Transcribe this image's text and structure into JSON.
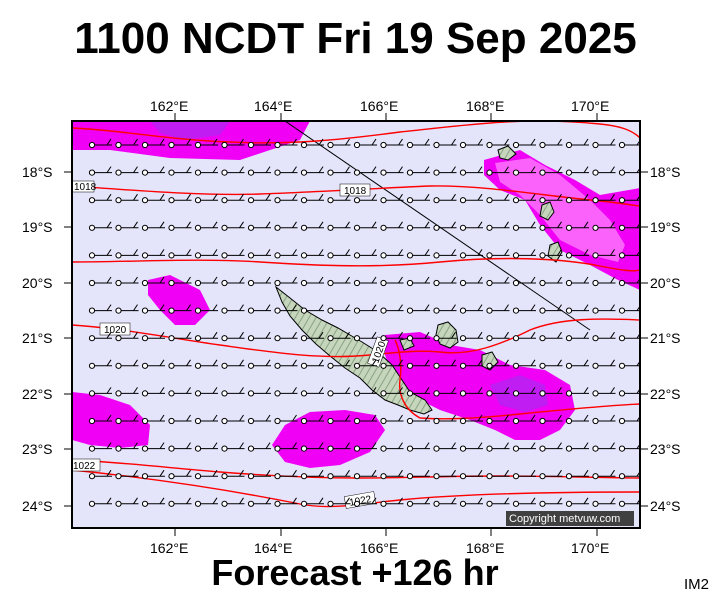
{
  "header": {
    "title": "1100 NCDT Fri 19 Sep 2025"
  },
  "footer": {
    "forecast": "Forecast +126 hr",
    "code": "IM2"
  },
  "map": {
    "lon_ticks": [
      "162°E",
      "164°E",
      "166°E",
      "168°E",
      "170°E"
    ],
    "lat_ticks": [
      "18°S",
      "19°S",
      "20°S",
      "21°S",
      "22°S",
      "23°S",
      "24°S"
    ],
    "isobar_labels": [
      "1018",
      "1018",
      "1020",
      "1020",
      "1022",
      "1022"
    ],
    "copyright": "Copyright metvuw.com"
  },
  "colors": {
    "ocean": "#e4e4fb",
    "land": "#c5d6bd",
    "rain_magenta": "#f000f5",
    "rain_pink": "#ff8cff",
    "rain_violet": "#a030f0",
    "isobar": "#ff0000"
  }
}
